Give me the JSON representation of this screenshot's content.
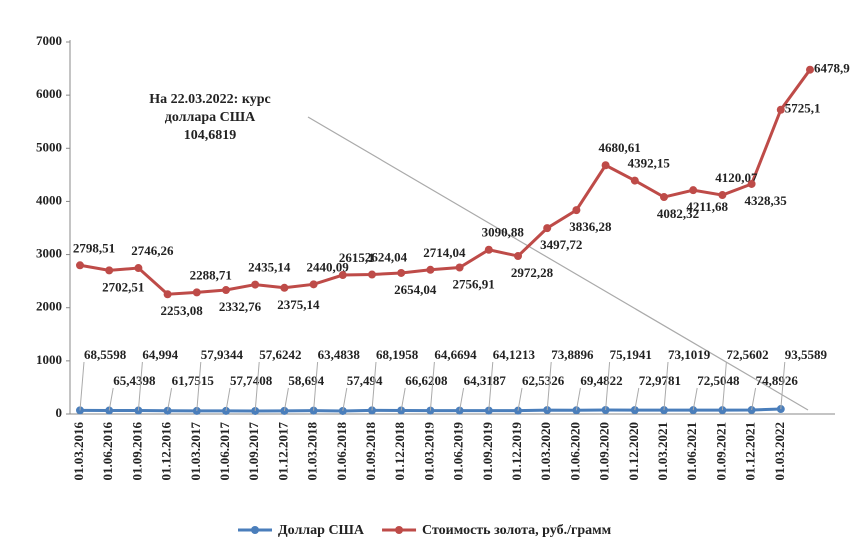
{
  "chart_data": {
    "type": "line",
    "categories": [
      "01.03.2016",
      "01.06.2016",
      "01.09.2016",
      "01.12.2016",
      "01.03.2017",
      "01.06.2017",
      "01.09.2017",
      "01.12.2017",
      "01.03.2018",
      "01.06.2018",
      "01.09.2018",
      "01.12.2018",
      "01.03.2019",
      "01.06.2019",
      "01.09.2019",
      "01.12.2019",
      "01.03.2020",
      "01.06.2020",
      "01.09.2020",
      "01.12.2020",
      "01.03.2021",
      "01.06.2021",
      "01.09.2021",
      "01.12.2021",
      "01.03.2022",
      null
    ],
    "series": [
      {
        "name": "Доллар США",
        "color": "#4a7ebb",
        "values": [
          68.5598,
          65.4398,
          64.994,
          61.7515,
          57.9344,
          57.7408,
          57.6242,
          58.694,
          63.4838,
          57.494,
          68.1958,
          66.6208,
          64.6694,
          64.3187,
          64.1213,
          62.5326,
          73.8896,
          69.4822,
          75.1941,
          72.9781,
          73.1019,
          72.5048,
          72.5602,
          74.8926,
          93.5589,
          null
        ],
        "value_labels": [
          "68,5598",
          "65,4398",
          "64,994",
          "61,7515",
          "57,9344",
          "57,7408",
          "57,6242",
          "58,694",
          "63,4838",
          "57,494",
          "68,1958",
          "66,6208",
          "64,6694",
          "64,3187",
          "64,1213",
          "62,5326",
          "73,8896",
          "69,4822",
          "75,1941",
          "72,9781",
          "73,1019",
          "72,5048",
          "72,5602",
          "74,8926",
          "93,5589",
          null
        ]
      },
      {
        "name": "Стоимость золота, руб./грамм",
        "color": "#be4b48",
        "values": [
          2798.51,
          2702.51,
          2746.26,
          2253.08,
          2288.71,
          2332.76,
          2435.14,
          2375.14,
          2440.09,
          2615.1,
          2624.04,
          2654.04,
          2714.04,
          2756.91,
          3090.88,
          2972.28,
          3497.72,
          3836.28,
          4680.61,
          4392.15,
          4082.32,
          4211.68,
          4120.07,
          4328.35,
          5725.1,
          6478.9
        ],
        "value_labels": [
          "2798,51",
          "2702,51",
          "2746,26",
          "2253,08",
          "2288,71",
          "2332,76",
          "2435,14",
          "2375,14",
          "2440,09",
          "2615,1",
          "2624,04",
          "2654,04",
          "2714,04",
          "2756,91",
          "3090,88",
          "2972,28",
          "3497,72",
          "3836,28",
          "4680,61",
          "4392,15",
          "4082,32",
          "4211,68",
          "4120,07",
          "4328,35",
          "5725,1",
          "6478,9"
        ]
      }
    ],
    "annotation": [
      "На 22.03.2022: курс",
      "доллара США",
      "104,6819"
    ],
    "ylim": [
      0,
      7000
    ],
    "yticks": [
      0,
      1000,
      2000,
      3000,
      4000,
      5000,
      6000,
      7000
    ],
    "grid": false,
    "legend": "bottom"
  }
}
